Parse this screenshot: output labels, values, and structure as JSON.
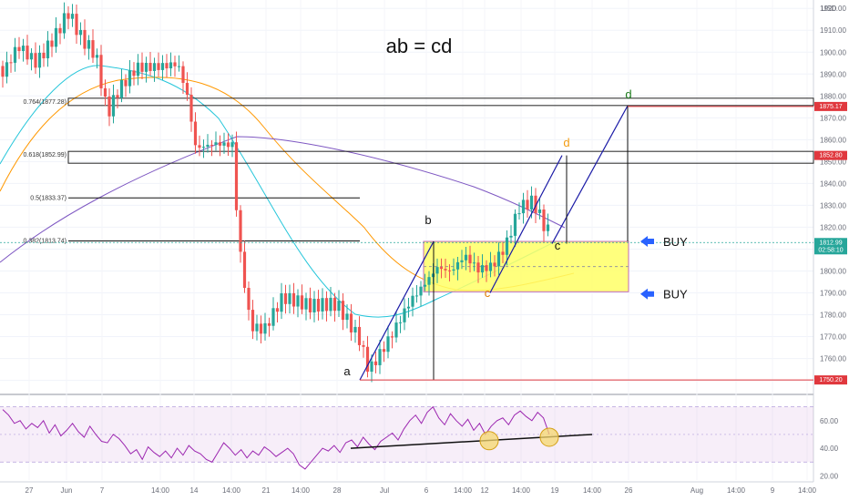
{
  "chart_data": [
    {
      "type": "candlestick",
      "title": "ab = cd",
      "currency": "USD",
      "ylim": [
        1744,
        1923
      ],
      "y_ticks": [
        1750,
        1760,
        1770,
        1780,
        1790,
        1800,
        1810,
        1820,
        1830,
        1840,
        1850,
        1860,
        1870,
        1880,
        1890,
        1900,
        1910,
        1920
      ],
      "y_tick_labels": [
        "1750.00",
        "1760.00",
        "1770.00",
        "1780.00",
        "1790.00",
        "1800.00",
        "1810.00",
        "1820.00",
        "1830.00",
        "1840.00",
        "1850.00",
        "1860.00",
        "1870.00",
        "1880.00",
        "1890.00",
        "1900.00",
        "1910.00",
        "1920.00"
      ],
      "x_tick_labels": [
        "27",
        "Jun",
        "7",
        "14:00",
        "14",
        "14:00",
        "21",
        "14:00",
        "28",
        "Jul",
        "6",
        "14:00",
        "12",
        "14:00",
        "19",
        "14:00",
        "26",
        "Aug",
        "14:00",
        "9",
        "14:00"
      ],
      "fib_levels": [
        {
          "label": "0.764(1877.28)",
          "value": 1877.28
        },
        {
          "label": "0.618(1852.99)",
          "value": 1852.99
        },
        {
          "label": "0.5(1833.37)",
          "value": 1833.37
        },
        {
          "label": "0.382(1813.74)",
          "value": 1813.74
        }
      ],
      "price_tags": [
        {
          "text": "1875.17",
          "value": 1875.17,
          "color": "#e0383e"
        },
        {
          "text": "1852.80",
          "value": 1852.8,
          "color": "#e0383e"
        },
        {
          "text": "1812.99",
          "subtext": "02:58:10",
          "value": 1812.99,
          "color": "#26a69a"
        },
        {
          "text": "1750.20",
          "value": 1750.2,
          "color": "#e0383e"
        }
      ],
      "points": [
        {
          "label": "a",
          "value": 1750.2,
          "color": "#111111"
        },
        {
          "label": "b",
          "value": 1813.5,
          "color": "#111111"
        },
        {
          "label": "c",
          "value": 1812.5,
          "color": "#111111"
        },
        {
          "label": "c",
          "value": 1790.0,
          "color": "#e07b00"
        },
        {
          "label": "d",
          "value": 1852.8,
          "color": "#f39c12"
        },
        {
          "label": "d",
          "value": 1878.5,
          "color": "#1b7a1b"
        }
      ],
      "zone": {
        "top": 1813.5,
        "bottom": 1790.5,
        "color": "#ffff66"
      },
      "buy_labels": [
        "BUY",
        "BUY"
      ],
      "series": [
        {
          "name": "",
          "color": "#26c6da",
          "kind": "moving-average"
        },
        {
          "name": "",
          "color": "#ff9800",
          "kind": "moving-average"
        },
        {
          "name": "",
          "color": "#7e57c2",
          "kind": "moving-average"
        }
      ]
    },
    {
      "type": "line",
      "ylim": [
        17,
        77
      ],
      "y_ticks": [
        20,
        40,
        60
      ],
      "y_tick_labels": [
        "20.00",
        "40.00",
        "60.00"
      ],
      "band": [
        30,
        70
      ],
      "series": [
        {
          "name": "",
          "color": "#9c27b0",
          "values": [
            68,
            64,
            58,
            60,
            54,
            58,
            55,
            60,
            51,
            57,
            49,
            53,
            58,
            52,
            48,
            56,
            50,
            45,
            44,
            50,
            47,
            42,
            36,
            39,
            32,
            41,
            37,
            34,
            38,
            33,
            40,
            35,
            42,
            38,
            36,
            32,
            30,
            37,
            44,
            40,
            35,
            39,
            33,
            38,
            35,
            41,
            38,
            34,
            37,
            40,
            36,
            28,
            25,
            30,
            35,
            40,
            38,
            42,
            37,
            44,
            46,
            41,
            48,
            43,
            39,
            45,
            48,
            51,
            46,
            54,
            60,
            64,
            58,
            66,
            70,
            62,
            57,
            65,
            60,
            56,
            61,
            53,
            58,
            50,
            56,
            60,
            62,
            57,
            64,
            67,
            63,
            60,
            66,
            62,
            50
          ]
        }
      ]
    }
  ],
  "colors": {
    "candle_up": "#26a69a",
    "candle_down": "#ef5350",
    "pattern": "#1a1aa6"
  }
}
